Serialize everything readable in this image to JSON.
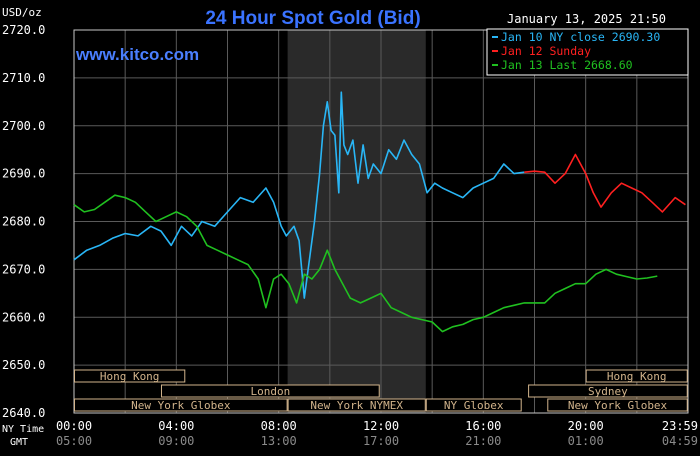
{
  "chart_data": {
    "type": "line",
    "title": "24 Hour Spot Gold (Bid)",
    "ylabel": "USD/oz",
    "timestamp": "January 13, 2025 21:50",
    "brand": "www.kitco.com",
    "ylim": [
      2640,
      2720
    ],
    "y_ticks": [
      "2720.0",
      "2710.0",
      "2700.0",
      "2690.0",
      "2680.0",
      "2670.0",
      "2660.0",
      "2650.0",
      "2640.0"
    ],
    "x_axis_label_ny": "NY Time",
    "x_axis_label_gmt": "GMT",
    "x_ticks_ny": [
      "00:00",
      "04:00",
      "08:00",
      "12:00",
      "16:00",
      "20:00",
      "23:59"
    ],
    "x_ticks_gmt": [
      "05:00",
      "09:00",
      "13:00",
      "17:00",
      "21:00",
      "01:00",
      "04:59"
    ],
    "xlim": [
      0,
      24
    ],
    "shaded_region": [
      8.35,
      13.75
    ],
    "legend": [
      {
        "text": "Jan 10 NY close 2690.30",
        "color": "#29b6f6"
      },
      {
        "text": "Jan 12 Sunday",
        "color": "#ff2020"
      },
      {
        "text": "Jan 13 Last 2668.60",
        "color": "#20c020"
      }
    ],
    "series": [
      {
        "name": "Jan 10 NY close 2690.30",
        "color": "#29b6f6",
        "x": [
          0,
          0.5,
          1,
          1.5,
          2,
          2.5,
          3,
          3.4,
          3.8,
          4.2,
          4.6,
          5,
          5.5,
          6,
          6.5,
          7,
          7.5,
          7.8,
          8.1,
          8.3,
          8.6,
          8.8,
          9,
          9.2,
          9.4,
          9.6,
          9.75,
          9.9,
          10.05,
          10.2,
          10.35,
          10.45,
          10.55,
          10.7,
          10.9,
          11.1,
          11.3,
          11.5,
          11.7,
          12,
          12.3,
          12.6,
          12.9,
          13.2,
          13.5,
          13.8,
          14.1,
          14.4,
          14.8,
          15.2,
          15.6,
          16,
          16.4,
          16.8,
          17.2,
          17.6
        ],
        "y": [
          2672,
          2674,
          2675,
          2676.5,
          2677.5,
          2677,
          2679,
          2678,
          2675,
          2679,
          2677,
          2680,
          2679,
          2682,
          2685,
          2684,
          2687,
          2684,
          2679,
          2677,
          2679,
          2676,
          2664,
          2672,
          2680,
          2690,
          2700,
          2705,
          2699,
          2698,
          2686,
          2707,
          2696,
          2694,
          2697,
          2688,
          2696,
          2689,
          2692,
          2690,
          2695,
          2693,
          2697,
          2694,
          2692,
          2686,
          2688,
          2687,
          2686,
          2685,
          2687,
          2688,
          2689,
          2692,
          2690,
          2690.3
        ]
      },
      {
        "name": "Jan 12 Sunday",
        "color": "#ff2020",
        "x": [
          17.6,
          18,
          18.4,
          18.8,
          19.2,
          19.6,
          20,
          20.3,
          20.6,
          21,
          21.4,
          21.8,
          22.2,
          22.6,
          23,
          23.5,
          23.9
        ],
        "y": [
          2690.3,
          2690.5,
          2690.3,
          2688,
          2690,
          2694,
          2690,
          2686,
          2683,
          2686,
          2688,
          2687,
          2686,
          2684,
          2682,
          2685,
          2683.5
        ]
      },
      {
        "name": "Jan 13 Last 2668.60",
        "color": "#20c020",
        "x": [
          0,
          0.4,
          0.8,
          1.2,
          1.6,
          2,
          2.4,
          2.8,
          3.2,
          3.6,
          4,
          4.4,
          4.8,
          5.2,
          5.6,
          6,
          6.4,
          6.8,
          7.2,
          7.5,
          7.8,
          8.1,
          8.4,
          8.7,
          9,
          9.3,
          9.6,
          9.9,
          10.2,
          10.5,
          10.8,
          11.2,
          11.6,
          12,
          12.4,
          12.8,
          13.2,
          13.6,
          14,
          14.4,
          14.8,
          15.2,
          15.6,
          16,
          16.4,
          16.8,
          17.2,
          17.6,
          18,
          18.4,
          18.8,
          19.2,
          19.6,
          20,
          20.4,
          20.8,
          21.2,
          21.6,
          22,
          22.4,
          22.8
        ],
        "y": [
          2683.5,
          2682,
          2682.5,
          2684,
          2685.5,
          2685,
          2684,
          2682,
          2680,
          2681,
          2682,
          2681,
          2679,
          2675,
          2674,
          2673,
          2672,
          2671,
          2668,
          2662,
          2668,
          2669,
          2667,
          2663,
          2669,
          2668,
          2670,
          2674,
          2670,
          2667,
          2664,
          2663,
          2664,
          2665,
          2662,
          2661,
          2660,
          2659.5,
          2659,
          2657,
          2658,
          2658.5,
          2659.5,
          2660,
          2661,
          2662,
          2662.5,
          2663,
          2663,
          2663,
          2665,
          2666,
          2667,
          2667,
          2669,
          2670,
          2669,
          2668.5,
          2668,
          2668.2,
          2668.6
        ]
      }
    ],
    "sessions": [
      {
        "label": "Hong Kong",
        "row": 0,
        "start": 0,
        "end": 4.35
      },
      {
        "label": "Hong Kong",
        "row": 0,
        "start": 20,
        "end": 23.99
      },
      {
        "label": "London",
        "row": 1,
        "start": 3.4,
        "end": 11.95
      },
      {
        "label": "Sydney",
        "row": 1,
        "start": 17.75,
        "end": 23.99
      },
      {
        "label": "New York Globex",
        "row": 2,
        "start": 0,
        "end": 8.35
      },
      {
        "label": "New York NYMEX",
        "row": 2,
        "start": 8.35,
        "end": 13.75
      },
      {
        "label": "NY Globex",
        "row": 2,
        "start": 13.75,
        "end": 17.5
      },
      {
        "label": "New York Globex",
        "row": 2,
        "start": 18.5,
        "end": 23.99
      }
    ]
  }
}
